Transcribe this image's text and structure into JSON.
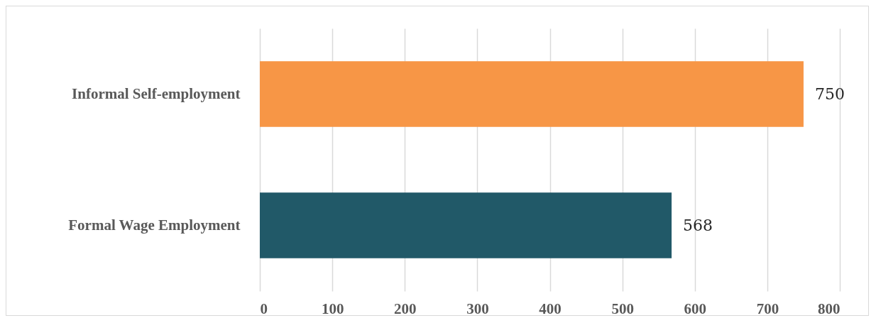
{
  "chart_data": {
    "type": "bar",
    "orientation": "horizontal",
    "categories": [
      "Informal Self-employment",
      "Formal Wage Employment"
    ],
    "values": [
      750,
      568
    ],
    "colors": [
      "#f79646",
      "#215968"
    ],
    "xlim": [
      0,
      800
    ],
    "xticks": [
      0,
      100,
      200,
      300,
      400,
      500,
      600,
      700,
      800
    ],
    "grid": "x",
    "data_labels": true
  }
}
